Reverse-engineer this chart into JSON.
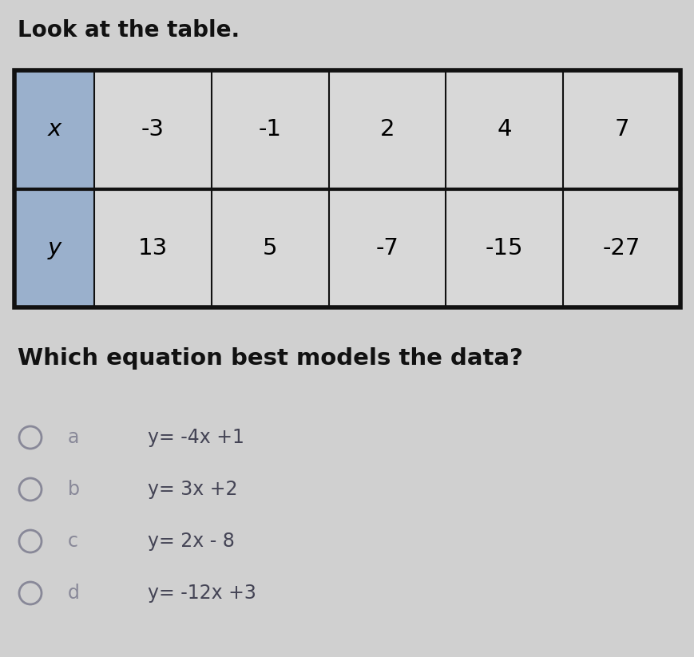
{
  "title": "Look at the table.",
  "question": "Which equation best models the data?",
  "table_headers": [
    "x",
    "-3",
    "-1",
    "2",
    "4",
    "7"
  ],
  "table_row2": [
    "y",
    "13",
    "5",
    "-7",
    "-15",
    "-27"
  ],
  "options": [
    {
      "letter": "a",
      "equation": "y= -4x +1"
    },
    {
      "letter": "b",
      "equation": "y= 3x +2"
    },
    {
      "letter": "c",
      "equation": "y= 2x - 8"
    },
    {
      "letter": "d",
      "equation": "y= -12x +3"
    }
  ],
  "bg_color": "#d0d0d0",
  "table_header_bg": "#9ab0cc",
  "table_cell_bg": "#d8d8d8",
  "table_border_color": "#111111",
  "title_fontsize": 20,
  "question_fontsize": 21,
  "option_fontsize": 17,
  "table_fontsize": 21,
  "letter_color": "#888898",
  "circle_color": "#888898",
  "equation_color": "#444455",
  "title_color": "#111111",
  "question_color": "#111111"
}
